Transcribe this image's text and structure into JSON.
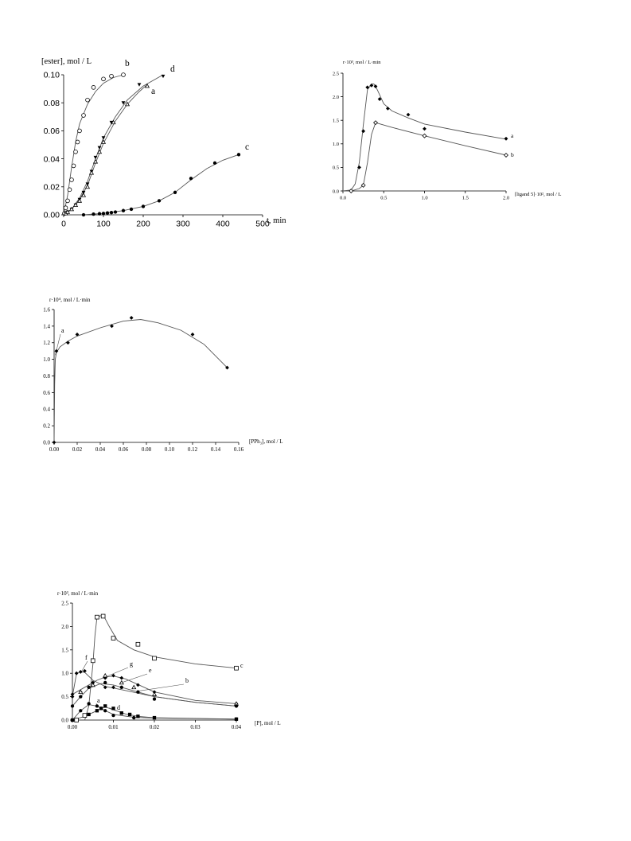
{
  "chart_data": [
    {
      "id": "c1",
      "type": "scatter",
      "ylabel": "[ester], mol / L",
      "xlabel": "t, min",
      "xlim": [
        0,
        500
      ],
      "ylim": [
        0,
        0.1
      ],
      "xticks": [
        0,
        100,
        200,
        300,
        400,
        500
      ],
      "yticks": [
        0.0,
        0.02,
        0.04,
        0.06,
        0.08,
        0.1
      ],
      "ytick_labels": [
        "0.00",
        "0.02",
        "0.04",
        "0.06",
        "0.08",
        "0.10"
      ],
      "xtick_labels": [
        "0",
        "100",
        "200",
        "300",
        "400",
        "500"
      ],
      "grid": false,
      "series": [
        {
          "name": "b",
          "marker": "open-circle",
          "x": [
            2,
            5,
            10,
            15,
            20,
            25,
            30,
            35,
            40,
            50,
            60,
            75,
            100,
            120,
            150
          ],
          "y": [
            0.001,
            0.005,
            0.01,
            0.018,
            0.025,
            0.035,
            0.045,
            0.052,
            0.06,
            0.071,
            0.082,
            0.091,
            0.097,
            0.099,
            0.1
          ]
        },
        {
          "name": "d",
          "marker": "filled-triangle-down",
          "x": [
            5,
            10,
            20,
            30,
            40,
            50,
            60,
            70,
            80,
            90,
            100,
            120,
            150,
            190,
            250
          ],
          "y": [
            0.001,
            0.002,
            0.004,
            0.007,
            0.011,
            0.016,
            0.022,
            0.031,
            0.041,
            0.048,
            0.055,
            0.066,
            0.08,
            0.093,
            0.099
          ]
        },
        {
          "name": "a",
          "marker": "open-triangle",
          "x": [
            5,
            10,
            20,
            30,
            40,
            50,
            60,
            70,
            80,
            90,
            100,
            125,
            160,
            210
          ],
          "y": [
            0.001,
            0.002,
            0.004,
            0.007,
            0.01,
            0.014,
            0.02,
            0.03,
            0.038,
            0.045,
            0.052,
            0.066,
            0.079,
            0.092
          ]
        },
        {
          "name": "c",
          "marker": "filled-circle",
          "x": [
            50,
            75,
            90,
            100,
            110,
            120,
            130,
            150,
            170,
            200,
            240,
            280,
            320,
            380,
            440
          ],
          "y": [
            0.0,
            0.0005,
            0.0008,
            0.001,
            0.0013,
            0.0016,
            0.002,
            0.003,
            0.004,
            0.006,
            0.01,
            0.016,
            0.026,
            0.037,
            0.043
          ]
        }
      ]
    },
    {
      "id": "c2",
      "type": "scatter",
      "ylabel": "r·10³, mol / L·min",
      "xlabel": "[ligand 5]·10², mol / L",
      "xlim": [
        0,
        2
      ],
      "ylim": [
        0,
        2.5
      ],
      "xticks": [
        0,
        0.5,
        1,
        1.5,
        2
      ],
      "yticks": [
        0,
        0.5,
        1,
        1.5,
        2,
        2.5
      ],
      "xtick_labels": [
        "0.0",
        "0.5",
        "1.0",
        "1.5",
        "2.0"
      ],
      "ytick_labels": [
        "0.0",
        "0.5",
        "1.0",
        "1.5",
        "2.0",
        "2.5"
      ],
      "grid": false,
      "series": [
        {
          "name": "a",
          "marker": "filled-diamond",
          "x": [
            0.1,
            0.2,
            0.25,
            0.3,
            0.35,
            0.4,
            0.45,
            0.55,
            0.8,
            1.0,
            2.0
          ],
          "y": [
            0,
            0.5,
            1.27,
            2.2,
            2.24,
            2.22,
            1.95,
            1.75,
            1.62,
            1.32,
            1.11
          ]
        },
        {
          "name": "b",
          "marker": "open-diamond",
          "x": [
            0.1,
            0.25,
            0.4,
            1.0,
            2.0
          ],
          "y": [
            0,
            0.12,
            1.45,
            1.17,
            0.76
          ]
        }
      ]
    },
    {
      "id": "c3",
      "type": "scatter",
      "ylabel": "r·10⁴, mol / L·min",
      "xlabel": "[PPh₃], mol / L",
      "xlim": [
        0,
        0.16
      ],
      "ylim": [
        0,
        1.6
      ],
      "xticks": [
        0,
        0.02,
        0.04,
        0.06,
        0.08,
        0.1,
        0.12,
        0.14,
        0.16
      ],
      "yticks": [
        0,
        0.2,
        0.4,
        0.6,
        0.8,
        1.0,
        1.2,
        1.4,
        1.6
      ],
      "xtick_labels": [
        "0.00",
        "0.02",
        "0.04",
        "0.06",
        "0.08",
        "0.10",
        "0.12",
        "0.14",
        "0.16"
      ],
      "ytick_labels": [
        "0.0",
        "0.2",
        "0.4",
        "0.6",
        "0.8",
        "1.0",
        "1.2",
        "1.4",
        "1.6"
      ],
      "grid": false,
      "series": [
        {
          "name": "a",
          "marker": "filled-diamond",
          "x": [
            0,
            0.002,
            0.012,
            0.02,
            0.05,
            0.067,
            0.12,
            0.15
          ],
          "y": [
            0,
            1.1,
            1.2,
            1.3,
            1.4,
            1.5,
            1.3,
            0.9
          ]
        }
      ]
    },
    {
      "id": "c4",
      "type": "scatter",
      "ylabel": "r·10³, mol / L·min",
      "xlabel": "[P], mol / L",
      "xlim": [
        0,
        0.04
      ],
      "ylim": [
        0,
        2.5
      ],
      "xticks": [
        0,
        0.01,
        0.02,
        0.03,
        0.04
      ],
      "yticks": [
        0,
        0.5,
        1,
        1.5,
        2,
        2.5
      ],
      "xtick_labels": [
        "0.00",
        "0.01",
        "0.02",
        "0.03",
        "0.04"
      ],
      "ytick_labels": [
        "0.0",
        "0.5",
        "1.0",
        "1.5",
        "2.0",
        "2.5"
      ],
      "grid": false,
      "series": [
        {
          "name": "c",
          "marker": "open-square",
          "x": [
            0.001,
            0.003,
            0.005,
            0.006,
            0.0075,
            0.01,
            0.016,
            0.02,
            0.04
          ],
          "y": [
            0,
            0.1,
            1.27,
            2.2,
            2.22,
            1.75,
            1.62,
            1.32,
            1.11
          ]
        },
        {
          "name": "f",
          "marker": "filled-diamond",
          "x": [
            0,
            0.001,
            0.002,
            0.003,
            0.005,
            0.008,
            0.01,
            0.04
          ],
          "y": [
            0.5,
            1.0,
            1.03,
            1.05,
            0.8,
            0.7,
            0.7,
            0.3
          ]
        },
        {
          "name": "g",
          "marker": "filled-diamond",
          "x": [
            0,
            0.002,
            0.005,
            0.008,
            0.01,
            0.012,
            0.016,
            0.02,
            0.04
          ],
          "y": [
            0.55,
            0.6,
            0.8,
            0.9,
            0.95,
            0.9,
            0.75,
            0.6,
            0.35
          ]
        },
        {
          "name": "e",
          "marker": "open-triangle",
          "x": [
            0.002,
            0.005,
            0.008,
            0.012,
            0.015,
            0.02,
            0.04
          ],
          "y": [
            0.6,
            0.75,
            0.95,
            0.8,
            0.7,
            0.55,
            0.35
          ]
        },
        {
          "name": "b",
          "marker": "filled-circle",
          "x": [
            0,
            0.002,
            0.004,
            0.008,
            0.012,
            0.016,
            0.02,
            0.04
          ],
          "y": [
            0.3,
            0.5,
            0.7,
            0.8,
            0.7,
            0.6,
            0.45,
            0.3
          ]
        },
        {
          "name": "a",
          "marker": "filled-circle",
          "x": [
            0,
            0.002,
            0.004,
            0.006,
            0.008,
            0.01,
            0.015,
            0.04
          ],
          "y": [
            0,
            0.2,
            0.35,
            0.3,
            0.2,
            0.1,
            0.05,
            0.02
          ]
        },
        {
          "name": "d",
          "marker": "filled-square",
          "x": [
            0,
            0.004,
            0.006,
            0.007,
            0.008,
            0.01,
            0.012,
            0.014,
            0.016,
            0.02,
            0.04
          ],
          "y": [
            0,
            0.12,
            0.2,
            0.25,
            0.3,
            0.25,
            0.15,
            0.12,
            0.08,
            0.05,
            0.02
          ]
        }
      ]
    }
  ]
}
